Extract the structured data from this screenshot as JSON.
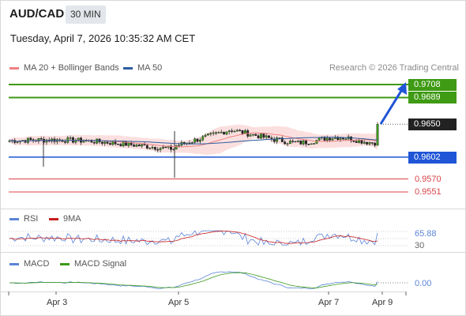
{
  "header": {
    "symbol": "AUD/CAD",
    "timeframe": "30 MIN",
    "datetime": "Tuesday, April 7, 2026 10:35:32 AM CET"
  },
  "legend": {
    "ma20_bb": "MA 20 + Bollinger Bands",
    "ma50": "MA 50",
    "copyright": "Research © 2026 Trading Central"
  },
  "levels": {
    "r2": "0.9708",
    "r1": "0.9689",
    "last": "0.9650",
    "s1": "0.9602",
    "s2": "0.9570",
    "s3": "0.9551"
  },
  "rsi": {
    "label": "RSI",
    "ma_label": "9MA",
    "value": "65.88",
    "lower_level": "30"
  },
  "macd": {
    "label": "MACD",
    "signal_label": "MACD Signal",
    "value": "0.00"
  },
  "x_axis": {
    "ticks": [
      "Apr 3",
      "Apr 5",
      "Apr 7",
      "Apr 9"
    ]
  },
  "colors": {
    "resistance": "#3f9a14",
    "support": "#1f55d6",
    "support_lines": "#d9444a",
    "last_price": "#222222",
    "ma20": "#f08080",
    "ma50": "#2b5d9e",
    "rsi": "#5b84d8",
    "rsi_ma": "#c81e1e",
    "macd": "#5b84d8",
    "macd_signal": "#3a9a18"
  },
  "chart_data": {
    "type": "line",
    "title": "AUD/CAD 30 MIN",
    "x": [
      "Apr 3",
      "Apr 5",
      "Apr 7",
      "Apr 9"
    ],
    "series": [
      {
        "name": "MA 20 + Bollinger Bands",
        "values": [
          0.962,
          0.9633,
          0.963,
          0.9628
        ]
      },
      {
        "name": "MA 50",
        "values": [
          0.9595,
          0.9618,
          0.9628,
          0.9627
        ]
      }
    ],
    "key_levels": [
      0.9708,
      0.9689,
      0.965,
      0.9602,
      0.957,
      0.9551
    ],
    "last_price": 0.965,
    "rsi": {
      "last": 65.88,
      "levels": [
        30,
        70
      ]
    },
    "macd": {
      "last": 0.0
    },
    "forecast": "up toward 0.9708"
  }
}
